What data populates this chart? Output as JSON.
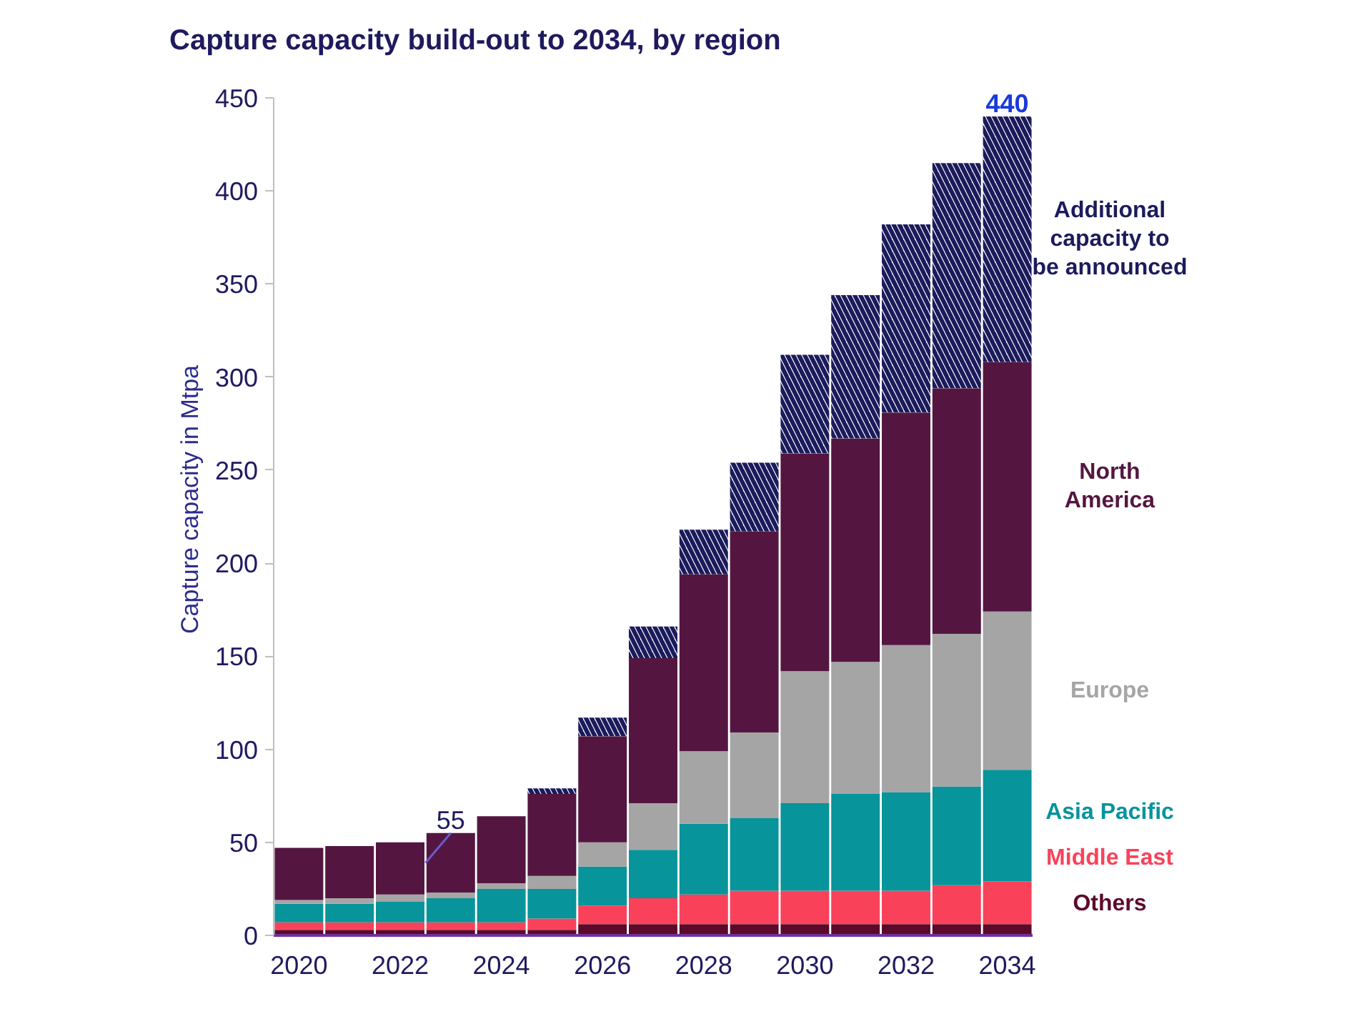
{
  "chart_data": {
    "type": "bar",
    "title": "Capture capacity build-out to 2034, by region",
    "ylabel": "Capture capacity in Mtpa",
    "stacked": true,
    "x": [
      2020,
      2021,
      2022,
      2023,
      2024,
      2025,
      2026,
      2027,
      2028,
      2029,
      2030,
      2031,
      2032,
      2033,
      2034
    ],
    "xlim": [
      2019.5,
      2034.5
    ],
    "xticks": [
      2020,
      2022,
      2024,
      2026,
      2028,
      2030,
      2032,
      2034
    ],
    "ylim": [
      0,
      450
    ],
    "yticks": [
      0,
      50,
      100,
      150,
      200,
      250,
      300,
      350,
      400,
      450
    ],
    "series": [
      {
        "name": "Others",
        "color": "#5c0a2a",
        "values": [
          3,
          3,
          3,
          3,
          3,
          3,
          6,
          6,
          6,
          6,
          6,
          6,
          6,
          6,
          6
        ]
      },
      {
        "name": "Middle East",
        "color": "#f9425a",
        "values": [
          4,
          4,
          4,
          4,
          4,
          6,
          10,
          14,
          16,
          18,
          18,
          18,
          18,
          21,
          23
        ]
      },
      {
        "name": "Asia Pacific",
        "color": "#07949a",
        "values": [
          10,
          10,
          11,
          13,
          18,
          16,
          21,
          26,
          38,
          39,
          47,
          52,
          53,
          53,
          60
        ]
      },
      {
        "name": "Europe",
        "color": "#a5a5a5",
        "values": [
          2,
          3,
          4,
          3,
          3,
          7,
          13,
          25,
          39,
          46,
          71,
          71,
          79,
          82,
          85
        ]
      },
      {
        "name": "North America",
        "color": "#541640",
        "values": [
          28,
          28,
          28,
          32,
          36,
          44,
          57,
          78,
          95,
          108,
          117,
          120,
          125,
          132,
          134
        ]
      },
      {
        "name": "Additional capacity to be announced",
        "color": "#1b1b5c",
        "values": [
          null,
          null,
          null,
          null,
          null,
          3,
          10,
          17,
          24,
          37,
          53,
          77,
          101,
          121,
          132
        ]
      }
    ],
    "annotations": [
      {
        "text": "55",
        "x": 2023,
        "y": 55
      },
      {
        "text": "440",
        "x": 2034,
        "y": 440
      }
    ]
  }
}
